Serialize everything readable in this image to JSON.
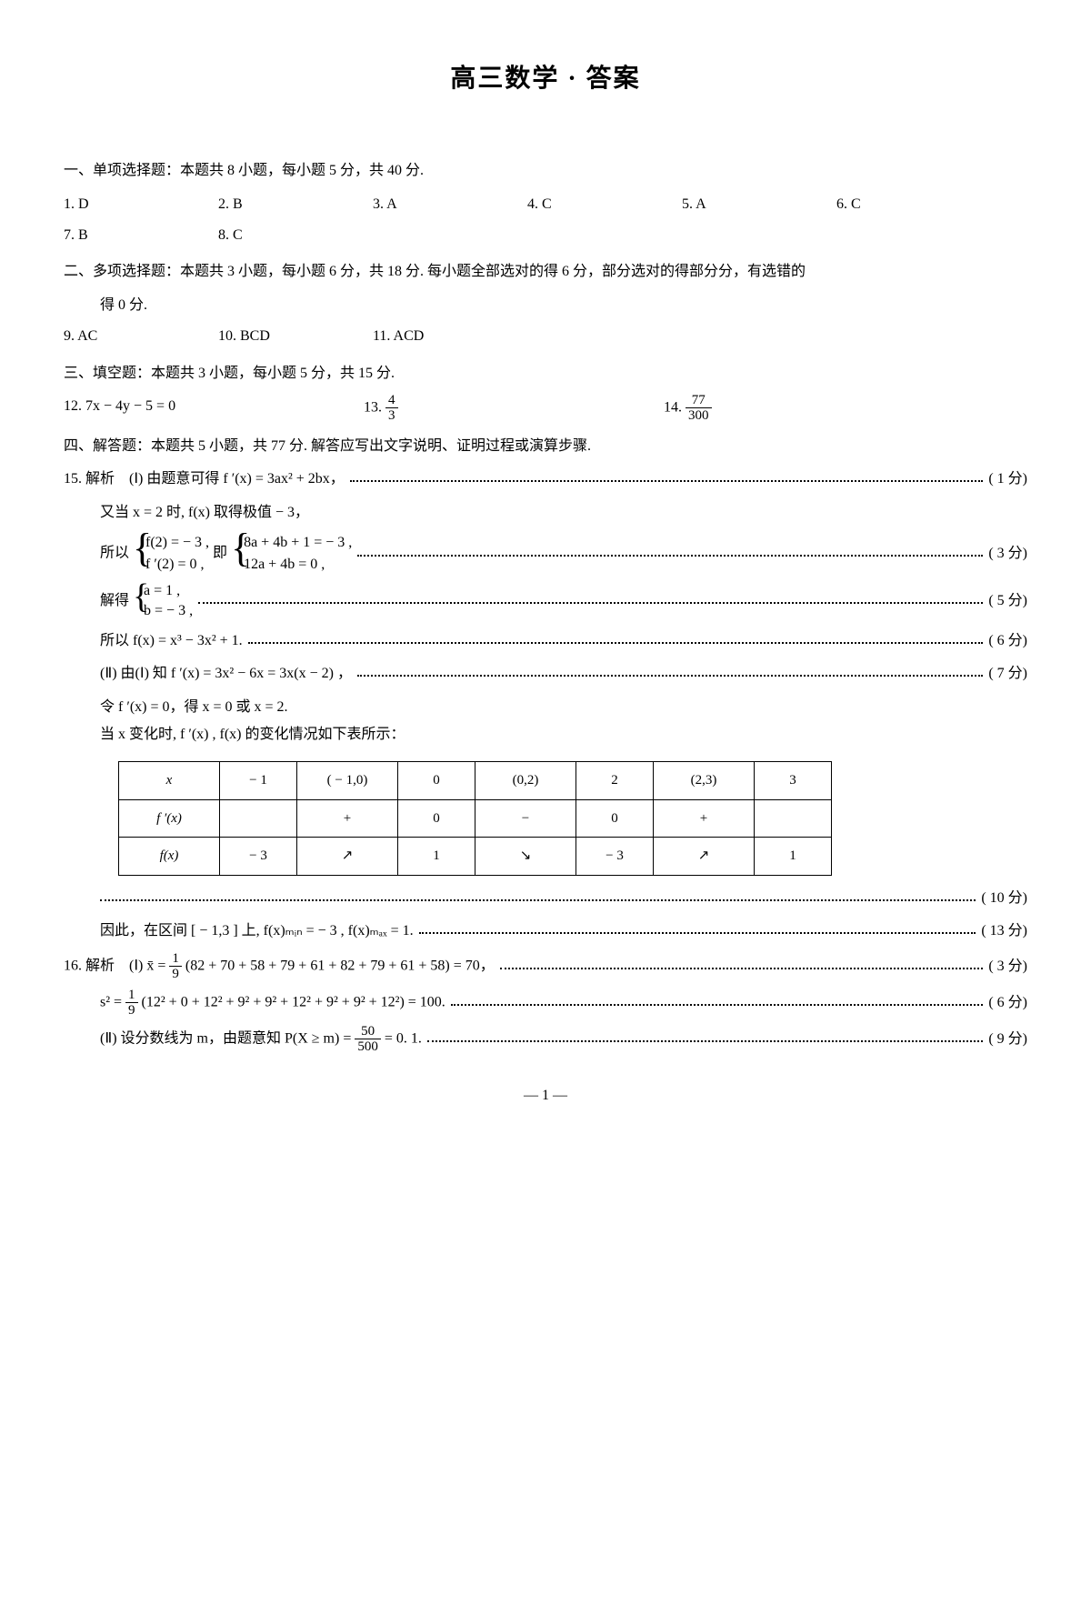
{
  "title": "高三数学 · 答案",
  "section1": {
    "heading": "一、单项选择题：本题共 8 小题，每小题 5 分，共 40 分.",
    "answers": [
      "1. D",
      "2. B",
      "3. A",
      "4. C",
      "5. A",
      "6. C",
      "7. B",
      "8. C"
    ]
  },
  "section2": {
    "heading_a": "二、多项选择题：本题共 3 小题，每小题 6 分，共 18 分. 每小题全部选对的得 6 分，部分选对的得部分分，有选错的",
    "heading_b": "得 0 分.",
    "answers": [
      "9. AC",
      "10. BCD",
      "11. ACD"
    ]
  },
  "section3": {
    "heading": "三、填空题：本题共 3 小题，每小题 5 分，共 15 分.",
    "q12": "12. 7x − 4y − 5 = 0",
    "q13_label": "13. ",
    "q13_num": "4",
    "q13_den": "3",
    "q14_label": "14. ",
    "q14_num": "77",
    "q14_den": "300"
  },
  "section4": {
    "heading": "四、解答题：本题共 5 小题，共 77 分. 解答应写出文字说明、证明过程或演算步骤."
  },
  "q15": {
    "l1": "15. 解析　(Ⅰ) 由题意可得 f ′(x) = 3ax² + 2bx，",
    "l1_score": "( 1 分)",
    "l2": "又当 x = 2 时, f(x) 取得极值 − 3，",
    "l3_intro": "所以 ",
    "l3_sys1a": "f(2) = − 3 ,",
    "l3_sys1b": "f ′(2) = 0 ,",
    "l3_mid": " 即 ",
    "l3_sys2a": "8a + 4b + 1 = − 3 ,",
    "l3_sys2b": "12a + 4b = 0 ,",
    "l3_score": "( 3 分)",
    "l4_intro": "解得 ",
    "l4_a": "a = 1 ,",
    "l4_b": "b = − 3 ,",
    "l4_score": "( 5 分)",
    "l5": "所以 f(x) = x³ − 3x² + 1.",
    "l5_score": "( 6 分)",
    "l6": "(Ⅱ) 由(Ⅰ) 知 f ′(x) = 3x² − 6x = 3x(x − 2) ，",
    "l6_score": "( 7 分)",
    "l7": "令 f ′(x) = 0，得 x = 0 或 x = 2.",
    "l8": "当 x 变化时, f ′(x) , f(x) 的变化情况如下表所示：",
    "table": {
      "rows": [
        [
          "x",
          "− 1",
          "( − 1,0)",
          "0",
          "(0,2)",
          "2",
          "(2,3)",
          "3"
        ],
        [
          "f ′(x)",
          "",
          "+",
          "0",
          "−",
          "0",
          "+",
          ""
        ],
        [
          "f(x)",
          "− 3",
          "↗",
          "1",
          "↘",
          "− 3",
          "↗",
          "1"
        ]
      ]
    },
    "l9_score": "( 10 分)",
    "l10": "因此，在区间 [ − 1,3 ] 上, f(x)ₘᵢₙ = − 3 , f(x)ₘₐₓ = 1.",
    "l10_score": "( 13 分)"
  },
  "q16": {
    "l1_a": "16. 解析　(Ⅰ) x̄ = ",
    "l1_num": "1",
    "l1_den": "9",
    "l1_b": " (82 + 70 + 58 + 79 + 61 + 82 + 79 + 61 + 58) = 70，",
    "l1_score": "( 3 分)",
    "l2_a": "s² = ",
    "l2_num": "1",
    "l2_den": "9",
    "l2_b": " (12² + 0 + 12² + 9² + 9² + 12² + 9² + 9² + 12²) = 100.",
    "l2_score": "( 6 分)",
    "l3_a": "(Ⅱ) 设分数线为 m，由题意知 P(X ≥ m) = ",
    "l3_num": "50",
    "l3_den": "500",
    "l3_b": " = 0. 1.",
    "l3_score": "( 9 分)"
  },
  "pagenum": "— 1 —"
}
